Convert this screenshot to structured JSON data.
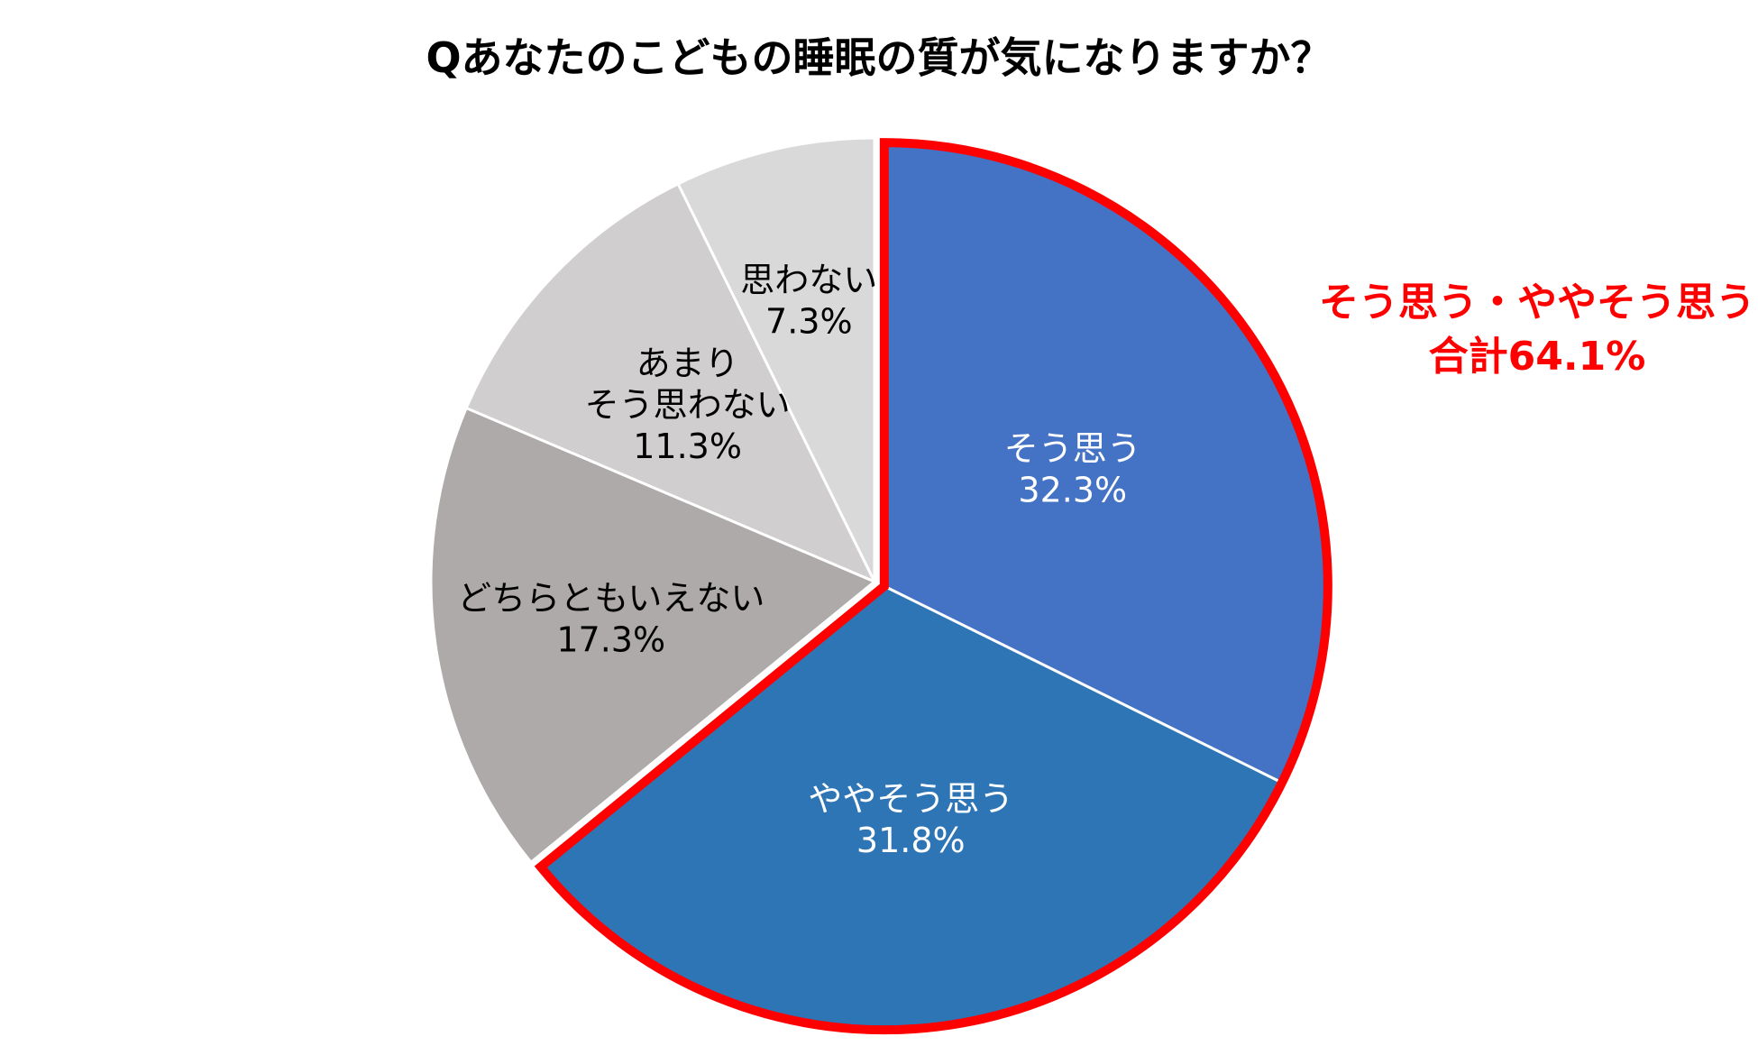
{
  "chart_data": {
    "type": "pie",
    "title": "Qあなたのこどもの睡眠の質が気になりますか？",
    "slices": [
      {
        "label": "そう思う",
        "value": 32.3,
        "value_text": "32.3%",
        "color": "#4472C4",
        "text_color": "#FFFFFF"
      },
      {
        "label": "ややそう思う",
        "value": 31.8,
        "value_text": "31.8%",
        "color": "#2E75B6",
        "text_color": "#FFFFFF"
      },
      {
        "label": "どちらともいえない",
        "value": 17.3,
        "value_text": "17.3%",
        "color": "#AEAAAA",
        "text_color": "#000000"
      },
      {
        "label": "あまり\nそう思わない",
        "value": 11.3,
        "value_text": "11.3%",
        "color": "#D0CECE",
        "text_color": "#000000"
      },
      {
        "label": "思わない",
        "value": 7.3,
        "value_text": "7.3%",
        "color": "#D9D9D9",
        "text_color": "#000000"
      }
    ],
    "start_angle": "12 o'clock",
    "direction": "clockwise",
    "highlight": {
      "slices": [
        "そう思う",
        "ややそう思う"
      ],
      "outline_color": "#FF0000",
      "explode": true
    },
    "callout": {
      "line1": "そう思う・ややそう思う",
      "line2": "合計64.1%",
      "color": "#FF0000"
    }
  }
}
